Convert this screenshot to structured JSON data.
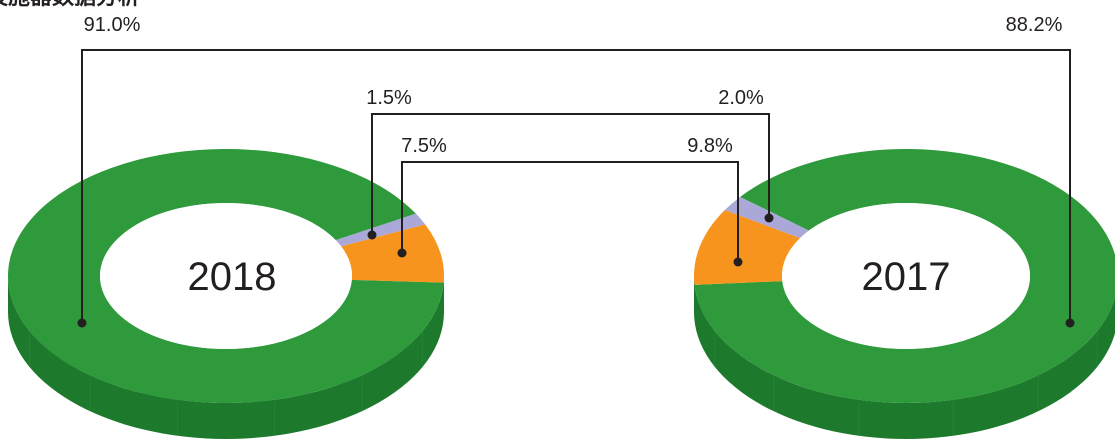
{
  "title": "设施器数据分析",
  "colors": {
    "green": "#2e9a3c",
    "green_side": "#1d7a2c",
    "orange": "#f7941d",
    "orange_side": "#c46f0e",
    "lavender": "#aaa8d8",
    "lavender_side": "#8583b8",
    "hole": "#ffffff",
    "leader": "#231f20"
  },
  "chart_data": {
    "type": "pie",
    "charts": [
      {
        "year": "2018",
        "slices": [
          {
            "name": "green",
            "value": 91.0,
            "label": "91.0%"
          },
          {
            "name": "orange",
            "value": 7.5,
            "label": "7.5%"
          },
          {
            "name": "lavender",
            "value": 1.5,
            "label": "1.5%"
          }
        ]
      },
      {
        "year": "2017",
        "slices": [
          {
            "name": "green",
            "value": 88.2,
            "label": "88.2%"
          },
          {
            "name": "orange",
            "value": 9.8,
            "label": "9.8%"
          },
          {
            "name": "lavender",
            "value": 2.0,
            "label": "2.0%"
          }
        ]
      }
    ]
  }
}
